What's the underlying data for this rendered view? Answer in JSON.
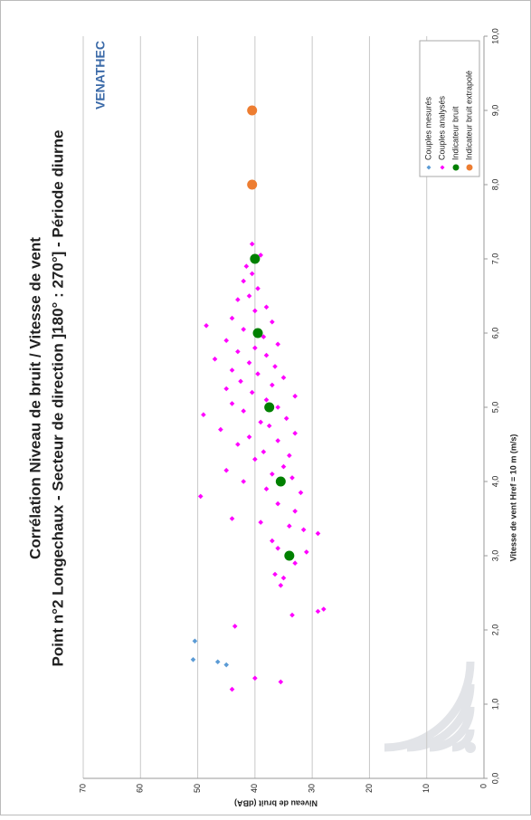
{
  "chart_data": {
    "type": "scatter",
    "title": "Corrélation Niveau de bruit / Vitesse de vent",
    "subtitle": "Point n°2 Longechaux - Secteur de direction ]180° : 270°] - Période diurne",
    "x_label": "Vitesse de vent Href = 10 m (m/s)",
    "y_label": "Niveau de bruit (dBA)",
    "logo": "VENATHEC",
    "xlim": [
      0,
      10
    ],
    "ylim": [
      0,
      70
    ],
    "xticks": [
      {
        "value": 0,
        "label": "0,0"
      },
      {
        "value": 1,
        "label": "1,0"
      },
      {
        "value": 2,
        "label": "2,0"
      },
      {
        "value": 3,
        "label": "3,0"
      },
      {
        "value": 4,
        "label": "4,0"
      },
      {
        "value": 5,
        "label": "5,0"
      },
      {
        "value": 6,
        "label": "6,0"
      },
      {
        "value": 7,
        "label": "7,0"
      },
      {
        "value": 8,
        "label": "8,0"
      },
      {
        "value": 9,
        "label": "9,0"
      },
      {
        "value": 10,
        "label": "10,0"
      }
    ],
    "yticks": [
      0,
      10,
      20,
      30,
      40,
      50,
      60,
      70
    ],
    "grid": true,
    "legend": "bottom-right",
    "series": [
      {
        "name": "Couples mesurés",
        "color": "#5b9bd5",
        "marker": "diamond",
        "x": [
          1.85,
          1.6,
          1.57,
          1.53
        ],
        "y": [
          50.5,
          50.8,
          46.5,
          45
        ]
      },
      {
        "name": "Couples analysés",
        "color": "#ff00ff",
        "marker": "diamond",
        "x": [
          1.2,
          1.35,
          1.3,
          2.05,
          2.2,
          2.25,
          2.28,
          2.6,
          2.7,
          2.75,
          2.9,
          3.05,
          3.1,
          3.2,
          3.3,
          3.35,
          3.4,
          3.45,
          3.5,
          3.6,
          3.7,
          3.8,
          3.85,
          3.9,
          4.0,
          4.05,
          4.1,
          4.15,
          4.2,
          4.3,
          4.35,
          4.4,
          4.5,
          4.55,
          4.6,
          4.65,
          4.7,
          4.75,
          4.8,
          4.85,
          4.9,
          4.95,
          5.0,
          5.05,
          5.1,
          5.15,
          5.2,
          5.25,
          5.3,
          5.35,
          5.4,
          5.45,
          5.5,
          5.55,
          5.6,
          5.65,
          5.7,
          5.75,
          5.8,
          5.85,
          5.9,
          5.95,
          6.05,
          6.1,
          6.15,
          6.2,
          6.3,
          6.35,
          6.45,
          6.5,
          6.6,
          6.7,
          6.8,
          6.9,
          7.05,
          7.2
        ],
        "y": [
          44,
          40,
          35.5,
          43.5,
          33.5,
          29,
          28,
          35.5,
          35,
          36.5,
          33,
          31,
          36,
          37,
          29,
          31.5,
          34,
          39,
          44,
          33,
          36,
          49.5,
          32,
          38,
          42,
          33.5,
          37,
          45,
          35,
          40,
          34,
          38.5,
          43,
          36,
          41,
          33,
          46,
          37.5,
          39,
          34.5,
          49,
          42,
          36,
          44,
          38,
          33,
          40.5,
          45,
          37,
          42.5,
          35,
          39.5,
          44,
          36.5,
          41,
          47,
          38,
          43,
          40,
          36,
          45,
          38.5,
          42,
          48.5,
          37,
          44,
          40,
          38,
          43,
          41,
          39.5,
          42,
          40.5,
          41.5,
          39,
          40.5
        ]
      },
      {
        "name": "Indicateur bruit",
        "color": "#008000",
        "marker": "circle",
        "x": [
          3,
          4,
          5,
          6,
          7
        ],
        "y": [
          34,
          35.5,
          37.5,
          39.5,
          40
        ]
      },
      {
        "name": "Indicateur bruit extrapolé",
        "color": "#ed7d31",
        "marker": "circle",
        "x": [
          8,
          9
        ],
        "y": [
          40.5,
          40.5
        ]
      }
    ]
  }
}
